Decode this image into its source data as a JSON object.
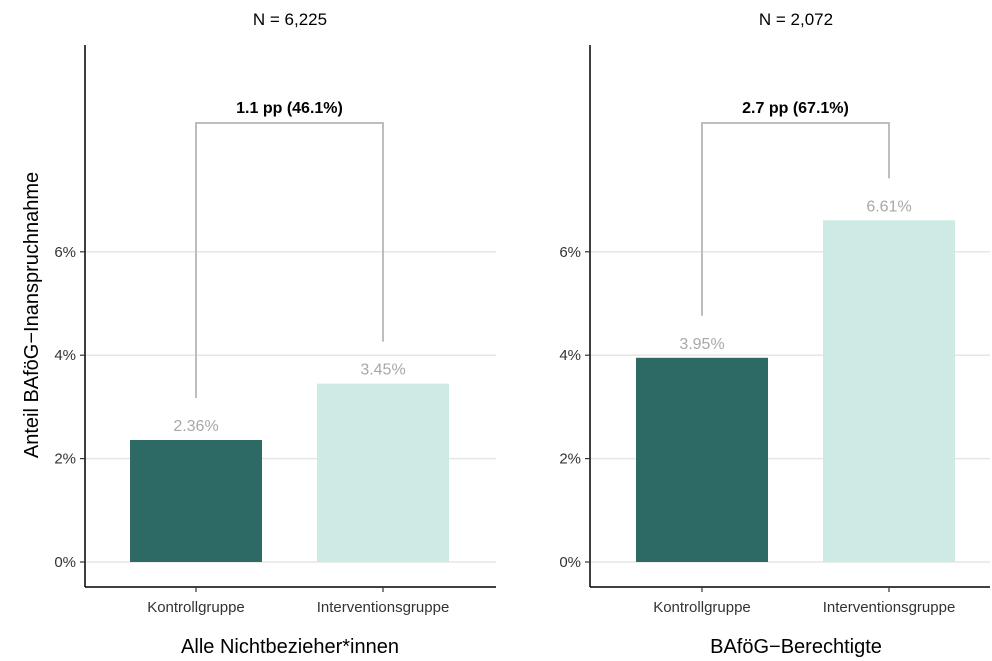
{
  "y_axis_title": "Anteil BAföG−Inanspruchnahme",
  "colors": {
    "control": "#2d6a65",
    "intervention": "#cdeae5",
    "bracket": "#bdbdbd",
    "value_label": "#a8a8a8",
    "grid": "#e6e6e6"
  },
  "chart_data": [
    {
      "type": "bar",
      "n_label": "N = 6,225",
      "xlabel": "Alle Nichtbezieher*innen",
      "ylabel": "Anteil BAföG−Inanspruchnahme",
      "categories": [
        "Kontrollgruppe",
        "Interventionsgruppe"
      ],
      "values": [
        2.36,
        3.45
      ],
      "value_labels": [
        "2.36%",
        "3.45%"
      ],
      "difference_label": "1.1 pp (46.1%)",
      "ylim": [
        0,
        8
      ],
      "yticks": [
        0,
        2,
        4,
        6
      ],
      "ytick_labels": [
        "0%",
        "2%",
        "4%",
        "6%"
      ],
      "grid": true
    },
    {
      "type": "bar",
      "n_label": "N = 2,072",
      "xlabel": "BAföG−Berechtigte",
      "ylabel": "",
      "categories": [
        "Kontrollgruppe",
        "Interventionsgruppe"
      ],
      "values": [
        3.95,
        6.61
      ],
      "value_labels": [
        "3.95%",
        "6.61%"
      ],
      "difference_label": "2.7 pp (67.1%)",
      "ylim": [
        0,
        8
      ],
      "yticks": [
        0,
        2,
        4,
        6
      ],
      "ytick_labels": [
        "0%",
        "2%",
        "4%",
        "6%"
      ],
      "grid": true
    }
  ]
}
